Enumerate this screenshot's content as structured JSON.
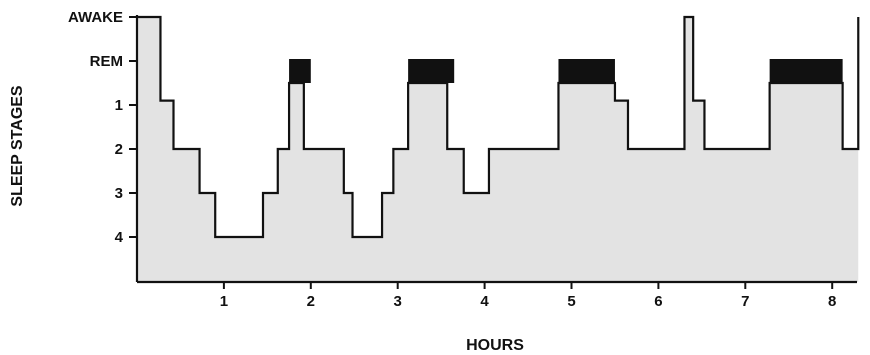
{
  "chart_data": {
    "type": "area",
    "title": "",
    "xlabel": "HOURS",
    "ylabel": "SLEEP STAGES",
    "x_ticks": [
      "1",
      "2",
      "3",
      "4",
      "5",
      "6",
      "7",
      "8"
    ],
    "y_ticks": [
      "AWAKE",
      "REM",
      "1",
      "2",
      "3",
      "4"
    ],
    "xlim": [
      0,
      8.3
    ],
    "ylim": [
      5,
      -1
    ],
    "grid": false,
    "legend": "none",
    "fill_color": "#e3e3e3",
    "rem_color": "#111111",
    "line_color": "#111111",
    "hypnogram": [
      [
        0.0,
        -1
      ],
      [
        0.27,
        0.9
      ],
      [
        0.42,
        2
      ],
      [
        0.72,
        3
      ],
      [
        0.9,
        4
      ],
      [
        1.45,
        3
      ],
      [
        1.62,
        2
      ],
      [
        1.75,
        0.5
      ],
      [
        1.92,
        2
      ],
      [
        2.38,
        3
      ],
      [
        2.48,
        4
      ],
      [
        2.82,
        3
      ],
      [
        2.95,
        2
      ],
      [
        3.12,
        0.5
      ],
      [
        3.57,
        2
      ],
      [
        3.76,
        3
      ],
      [
        4.05,
        2
      ],
      [
        4.85,
        0.5
      ],
      [
        5.5,
        0.9
      ],
      [
        5.65,
        2
      ],
      [
        6.3,
        -1
      ],
      [
        6.4,
        0.9
      ],
      [
        6.53,
        2
      ],
      [
        7.28,
        0.5
      ],
      [
        8.12,
        2
      ],
      [
        8.3,
        -1
      ]
    ],
    "rem_periods": [
      [
        1.75,
        2.0
      ],
      [
        3.12,
        3.65
      ],
      [
        4.85,
        5.5
      ],
      [
        7.28,
        8.12
      ]
    ]
  }
}
